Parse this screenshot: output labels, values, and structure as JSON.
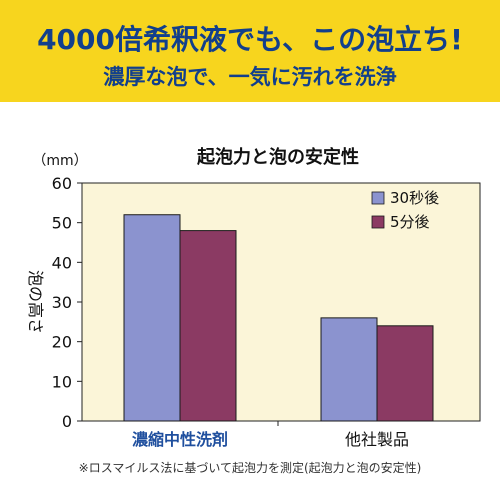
{
  "banner": {
    "headline": "4000倍希釈液でも、この泡立ち!",
    "subline": "濃厚な泡で、一気に汚れを洗浄"
  },
  "footnote": "※ロスマイルス法に基づいて起泡力を測定(起泡力と泡の安定性)",
  "colors": {
    "banner_bg": "#f7d51e",
    "banner_text": "#123f8c",
    "plot_bg": "#fbf5d8",
    "series_30s": "#8b93cf",
    "series_5min": "#8b3a63",
    "highlight_category": "#1f4f9e"
  },
  "chart_data": {
    "type": "bar",
    "title": "起泡力と泡の安定性",
    "ylabel": "泡の高さ",
    "yunit": "（mm）",
    "ylim": [
      0,
      60
    ],
    "yticks": [
      "0",
      "10",
      "20",
      "30",
      "40",
      "50",
      "60"
    ],
    "categories": [
      "濃縮中性洗剤",
      "他社製品"
    ],
    "series": [
      {
        "name": "30秒後",
        "values": [
          52,
          26
        ]
      },
      {
        "name": "5分後",
        "values": [
          48,
          24
        ]
      }
    ],
    "legend_position": "top-right",
    "grid": false
  }
}
